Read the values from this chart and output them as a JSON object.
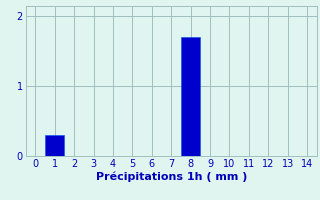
{
  "x_values": [
    0,
    1,
    2,
    3,
    4,
    5,
    6,
    7,
    8,
    9,
    10,
    11,
    12,
    13,
    14
  ],
  "bar_heights": [
    0,
    0.3,
    0,
    0,
    0,
    0,
    0,
    0,
    1.7,
    0,
    0,
    0,
    0,
    0,
    0
  ],
  "bar_color": "#0000CC",
  "bar_edge_color": "#0055EE",
  "background_color": "#E0F5F0",
  "grid_color": "#A0C0C0",
  "text_color": "#0000BB",
  "xlabel": "Précipitations 1h ( mm )",
  "xlim": [
    -0.5,
    14.5
  ],
  "ylim": [
    0,
    2.15
  ],
  "yticks": [
    0,
    1,
    2
  ],
  "xticks": [
    0,
    1,
    2,
    3,
    4,
    5,
    6,
    7,
    8,
    9,
    10,
    11,
    12,
    13,
    14
  ],
  "xlabel_fontsize": 8,
  "tick_fontsize": 7,
  "bar_width": 0.95
}
